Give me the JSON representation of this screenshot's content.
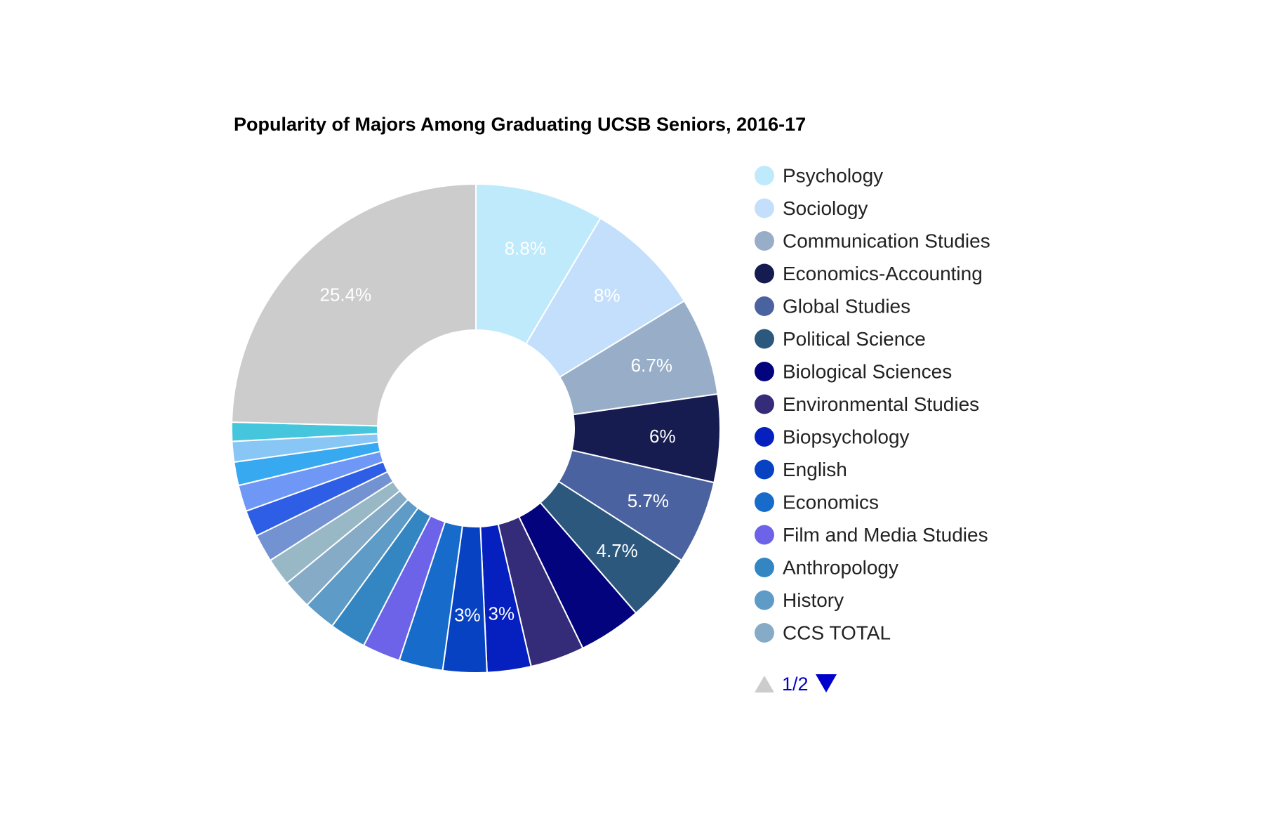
{
  "chart_data": {
    "type": "pie",
    "title": "Popularity of Majors Among Graduating UCSB Seniors, 2016-17",
    "donut": true,
    "slices": [
      {
        "name": "Psychology",
        "value": 8.8,
        "color": "#bfeafc",
        "label": "8.8%"
      },
      {
        "name": "Sociology",
        "value": 8.0,
        "color": "#c3dffb",
        "label": "8%"
      },
      {
        "name": "Communication Studies",
        "value": 6.7,
        "color": "#98aec8",
        "label": "6.7%"
      },
      {
        "name": "Economics-Accounting",
        "value": 6.0,
        "color": "#161c50",
        "label": "6%"
      },
      {
        "name": "Global Studies",
        "value": 5.7,
        "color": "#4a62a0",
        "label": "5.7%"
      },
      {
        "name": "Political Science",
        "value": 4.7,
        "color": "#2c587e",
        "label": "4.7%"
      },
      {
        "name": "Biological Sciences",
        "value": 4.3,
        "color": "#03037d",
        "label": ""
      },
      {
        "name": "Environmental Studies",
        "value": 3.7,
        "color": "#342c78",
        "label": ""
      },
      {
        "name": "Biopsychology",
        "value": 3.0,
        "color": "#061fbf",
        "label": "3%"
      },
      {
        "name": "English",
        "value": 3.0,
        "color": "#0642c2",
        "label": "3%"
      },
      {
        "name": "Economics",
        "value": 3.0,
        "color": "#176ccb",
        "label": ""
      },
      {
        "name": "Film and Media Studies",
        "value": 2.6,
        "color": "#6c63e8",
        "label": ""
      },
      {
        "name": "Anthropology",
        "value": 2.5,
        "color": "#3386c2",
        "label": ""
      },
      {
        "name": "History",
        "value": 2.2,
        "color": "#5e9bc6",
        "label": ""
      },
      {
        "name": "CCS TOTAL",
        "value": 2.0,
        "color": "#86abc6",
        "label": ""
      },
      {
        "name": "",
        "value": 1.9,
        "color": "#98b8c6",
        "label": ""
      },
      {
        "name": "",
        "value": 1.9,
        "color": "#7392d2",
        "label": ""
      },
      {
        "name": "",
        "value": 1.8,
        "color": "#2f5ee6",
        "label": ""
      },
      {
        "name": "",
        "value": 1.8,
        "color": "#6f98f6",
        "label": ""
      },
      {
        "name": "",
        "value": 1.6,
        "color": "#37a9f0",
        "label": ""
      },
      {
        "name": "",
        "value": 1.4,
        "color": "#88c6f6",
        "label": ""
      },
      {
        "name": "",
        "value": 1.3,
        "color": "#46c6dc",
        "label": ""
      },
      {
        "name": "",
        "value": 25.4,
        "color": "#cccccc",
        "label": "25.4%"
      }
    ],
    "legend": {
      "placement": "right",
      "items": [
        "Psychology",
        "Sociology",
        "Communication Studies",
        "Economics-Accounting",
        "Global Studies",
        "Political Science",
        "Biological Sciences",
        "Environmental Studies",
        "Biopsychology",
        "English",
        "Economics",
        "Film and Media Studies",
        "Anthropology",
        "History",
        "CCS TOTAL"
      ]
    },
    "pager": {
      "label": "1/2",
      "up_color": "#cccccc",
      "down_color": "#0000cc"
    }
  }
}
